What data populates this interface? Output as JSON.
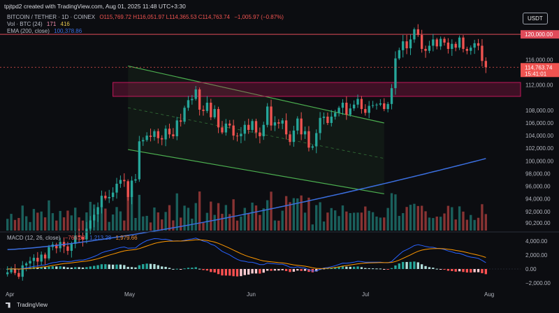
{
  "header": {
    "author_line": "tpjtpd2 created with TradingView.com, Aug 01, 2025 11:48 UTC+3:30",
    "symbol": "BITCOIN / TETHER · 1D · COINEX",
    "ohlc": "O115,769.72  H116,051.97  L114,365.53  C114,763.74",
    "change": "−1,005.97 (−0.87%)",
    "vol_label": "Vol · BTC (24)",
    "vol_a": "171",
    "vol_b": "416",
    "ema_label": "EMA (200, close)",
    "ema_value": "100,378.86",
    "macd_label": "MACD (12, 26, close)",
    "macd_a": "−766.38",
    "macd_b": "1,213.28",
    "macd_c": "1,979.66",
    "currency": "USDT",
    "branding": "TradingView"
  },
  "chart_data": [
    {
      "type": "candlestick",
      "title": "BITCOIN / TETHER · 1D · COINEX",
      "x_ticks": [
        "Apr",
        "May",
        "Jun",
        "Jul",
        "Aug"
      ],
      "y_ticks": [
        "120,000.00",
        "116,000.00",
        "112,000.00",
        "108,000.00",
        "106,000.00",
        "104,000.00",
        "102,000.00",
        "100,000.00",
        "98,000.00",
        "96,000.00",
        "94,000.00",
        "92,000.00",
        "90,200.00"
      ],
      "ylim": [
        89000,
        123000
      ],
      "last_price_label": "114,763.74",
      "countdown_label": "15:41:01",
      "horizontal_level": 120000,
      "resistance_zone": [
        110200,
        112400
      ],
      "channel": {
        "upper": [
          [
            32,
            115000
          ],
          [
            100,
            106000
          ]
        ],
        "lower": [
          [
            32,
            101800
          ],
          [
            100,
            94800
          ]
        ],
        "mid": [
          [
            32,
            108400
          ],
          [
            100,
            100400
          ]
        ]
      },
      "ema200_value": 100378.86,
      "closes": [
        82400,
        82900,
        82300,
        81700,
        83500,
        83800,
        84200,
        84700,
        84100,
        85200,
        84600,
        86400,
        86800,
        86200,
        87200,
        86500,
        85800,
        86900,
        88200,
        88000,
        87600,
        89300,
        90600,
        91500,
        92700,
        94500,
        94100,
        94300,
        95000,
        96400,
        97000,
        96800,
        94300,
        96900,
        97100,
        103100,
        103300,
        104000,
        103800,
        104700,
        103600,
        103400,
        105100,
        104200,
        103900,
        106400,
        106200,
        108400,
        109600,
        109800,
        111300,
        108100,
        107900,
        109200,
        106900,
        108200,
        105300,
        104500,
        105900,
        105600,
        104000,
        103900,
        104300,
        105700,
        104900,
        106300,
        104500,
        103900,
        105700,
        108600,
        105600,
        106100,
        105900,
        106400,
        104200,
        103000,
        104800,
        106700,
        104200,
        104700,
        102100,
        102300,
        104400,
        106800,
        107000,
        106000,
        107000,
        107600,
        108400,
        109200,
        107300,
        108300,
        108900,
        109800,
        108200,
        107600,
        108700,
        108800,
        108900,
        109100,
        108200,
        109000,
        111500,
        116200,
        117500,
        118900,
        117800,
        119200,
        120800,
        119900,
        117700,
        117400,
        118200,
        119200,
        118100,
        119300,
        118700,
        117700,
        118500,
        117900,
        119500,
        117700,
        117400,
        117900,
        118600,
        118200,
        115800,
        114800
      ],
      "volume_note": "Vol · BTC (24)",
      "macd": {
        "label": "MACD (12, 26, close)",
        "values": [
          -766.38,
          1213.28,
          1979.66
        ],
        "y_ticks": [
          "4,000.00",
          "2,000.00",
          "0.00",
          "−2,000.00"
        ]
      }
    }
  ],
  "colors": {
    "up": "#26a69a",
    "down": "#ef5350",
    "ema": "#3b6fe0",
    "channel": "#4caf50",
    "zone": "#c2185b",
    "level": "#e04b5a"
  }
}
